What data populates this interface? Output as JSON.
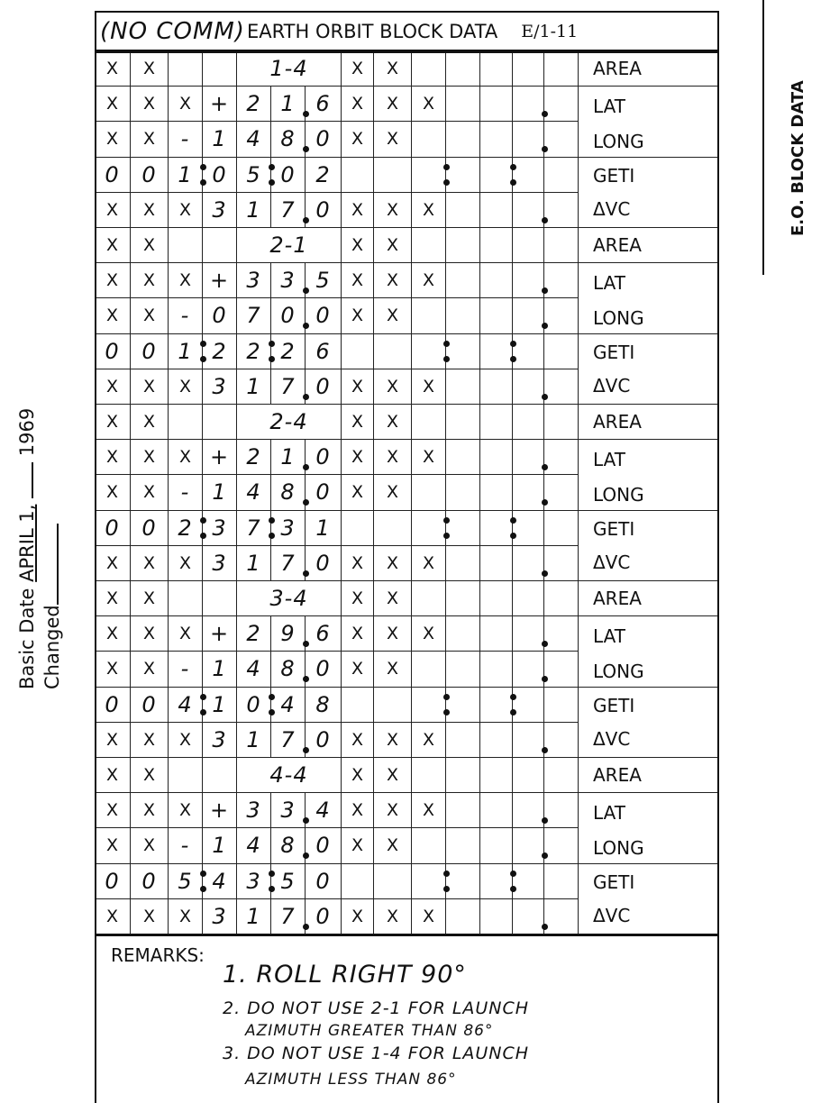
{
  "header": {
    "handwritten_note": "(NO COMM)",
    "title": "EARTH ORBIT BLOCK DATA",
    "page_id": "E/1-11"
  },
  "side_tab": "E.O. BLOCK DATA",
  "footer_left": {
    "basic_date_label": "Basic Date",
    "basic_date_value": "APRIL 1,",
    "year": "1969",
    "changed_label": "Changed"
  },
  "labels": {
    "area": "AREA",
    "lat": "LAT",
    "long": "LONG",
    "geti": "GETI",
    "dvc": "ΔVC"
  },
  "blocks": [
    {
      "area": "1-4",
      "lat": [
        "X",
        "X",
        "X",
        "+",
        "2",
        "1",
        "6",
        "X",
        "X",
        "X",
        "",
        "",
        "",
        ""
      ],
      "long": [
        "X",
        "X",
        "-",
        "1",
        "4",
        "8",
        "0",
        "X",
        "X",
        "",
        "",
        "",
        "",
        ""
      ],
      "geti": [
        "0",
        "0",
        "1",
        "0",
        "5",
        "0",
        "2",
        "",
        "",
        "",
        "",
        "",
        "",
        ""
      ],
      "dvc": [
        "X",
        "X",
        "X",
        "3",
        "1",
        "7",
        "0",
        "X",
        "X",
        "X",
        "",
        "",
        "",
        ""
      ]
    },
    {
      "area": "2-1",
      "lat": [
        "X",
        "X",
        "X",
        "+",
        "3",
        "3",
        "5",
        "X",
        "X",
        "X",
        "",
        "",
        "",
        ""
      ],
      "long": [
        "X",
        "X",
        "-",
        "0",
        "7",
        "0",
        "0",
        "X",
        "X",
        "",
        "",
        "",
        "",
        ""
      ],
      "geti": [
        "0",
        "0",
        "1",
        "2",
        "2",
        "2",
        "6",
        "",
        "",
        "",
        "",
        "",
        "",
        ""
      ],
      "dvc": [
        "X",
        "X",
        "X",
        "3",
        "1",
        "7",
        "0",
        "X",
        "X",
        "X",
        "",
        "",
        "",
        ""
      ]
    },
    {
      "area": "2-4",
      "lat": [
        "X",
        "X",
        "X",
        "+",
        "2",
        "1",
        "0",
        "X",
        "X",
        "X",
        "",
        "",
        "",
        ""
      ],
      "long": [
        "X",
        "X",
        "-",
        "1",
        "4",
        "8",
        "0",
        "X",
        "X",
        "",
        "",
        "",
        "",
        ""
      ],
      "geti": [
        "0",
        "0",
        "2",
        "3",
        "7",
        "3",
        "1",
        "",
        "",
        "",
        "",
        "",
        "",
        ""
      ],
      "dvc": [
        "X",
        "X",
        "X",
        "3",
        "1",
        "7",
        "0",
        "X",
        "X",
        "X",
        "",
        "",
        "",
        ""
      ]
    },
    {
      "area": "3-4",
      "lat": [
        "X",
        "X",
        "X",
        "+",
        "2",
        "9",
        "6",
        "X",
        "X",
        "X",
        "",
        "",
        "",
        ""
      ],
      "long": [
        "X",
        "X",
        "-",
        "1",
        "4",
        "8",
        "0",
        "X",
        "X",
        "",
        "",
        "",
        "",
        ""
      ],
      "geti": [
        "0",
        "0",
        "4",
        "1",
        "0",
        "4",
        "8",
        "",
        "",
        "",
        "",
        "",
        "",
        ""
      ],
      "dvc": [
        "X",
        "X",
        "X",
        "3",
        "1",
        "7",
        "0",
        "X",
        "X",
        "X",
        "",
        "",
        "",
        ""
      ]
    },
    {
      "area": "4-4",
      "lat": [
        "X",
        "X",
        "X",
        "+",
        "3",
        "3",
        "4",
        "X",
        "X",
        "X",
        "",
        "",
        "",
        ""
      ],
      "long": [
        "X",
        "X",
        "-",
        "1",
        "4",
        "8",
        "0",
        "X",
        "X",
        "",
        "",
        "",
        "",
        ""
      ],
      "geti": [
        "0",
        "0",
        "5",
        "4",
        "3",
        "5",
        "0",
        "",
        "",
        "",
        "",
        "",
        "",
        ""
      ],
      "dvc": [
        "X",
        "X",
        "X",
        "3",
        "1",
        "7",
        "0",
        "X",
        "X",
        "X",
        "",
        "",
        "",
        ""
      ]
    }
  ],
  "area_prefix": [
    "X",
    "X"
  ],
  "area_suffix": [
    "X",
    "X"
  ],
  "remarks": {
    "label": "REMARKS:",
    "lines": [
      "1. ROLL RIGHT 90°",
      "2. DO NOT USE 2-1 FOR LAUNCH",
      "AZIMUTH GREATER THAN 86°",
      "3. DO NOT USE 1-4 FOR LAUNCH",
      "AZIMUTH LESS THAN 86°"
    ]
  }
}
